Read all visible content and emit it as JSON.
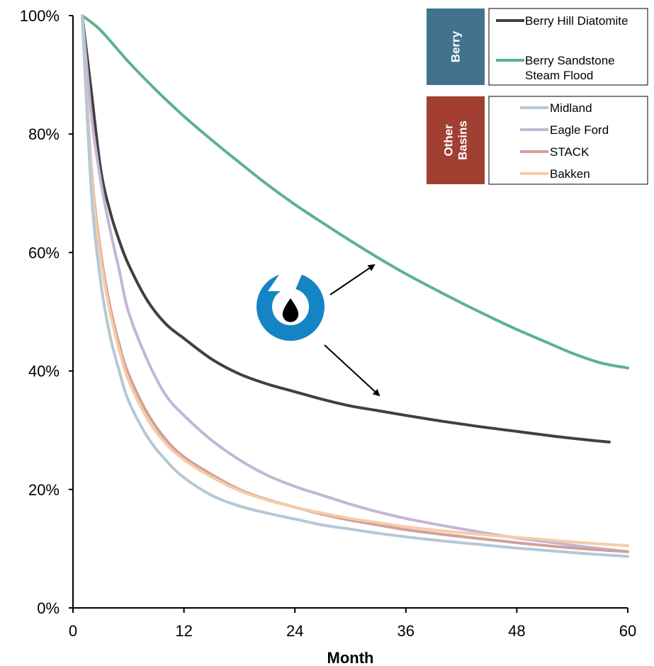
{
  "chart_data": {
    "type": "line",
    "xlabel": "Month",
    "ylabel": "",
    "xlim": [
      0,
      60
    ],
    "ylim": [
      0,
      1
    ],
    "x_ticks": [
      0,
      12,
      24,
      36,
      48,
      60
    ],
    "x_tick_labels": [
      "0",
      "12",
      "24",
      "36",
      "48",
      "60"
    ],
    "y_ticks": [
      0,
      0.2,
      0.4,
      0.6,
      0.8,
      1.0
    ],
    "y_tick_labels": [
      "0%",
      "20%",
      "40%",
      "60%",
      "80%",
      "100%"
    ],
    "grid": false,
    "legend_position": "top-right",
    "legend_groups": [
      {
        "label": "Berry",
        "color": "#41738f",
        "series": [
          "Berry Hill Diatomite",
          "Berry Sandstone Steam Flood"
        ]
      },
      {
        "label": "Other Basins",
        "color": "#a13f33",
        "series": [
          "Midland",
          "Eagle Ford",
          "STACK",
          "Bakken"
        ]
      }
    ],
    "series": [
      {
        "name": "Berry Sandstone Steam Flood",
        "color": "#5bb28e",
        "x": [
          1,
          3,
          6,
          9,
          12,
          15,
          18,
          21,
          24,
          27,
          30,
          33,
          36,
          39,
          42,
          45,
          48,
          51,
          54,
          57,
          60
        ],
        "y": [
          1.0,
          0.975,
          0.922,
          0.874,
          0.83,
          0.79,
          0.752,
          0.715,
          0.681,
          0.65,
          0.62,
          0.591,
          0.564,
          0.539,
          0.515,
          0.492,
          0.47,
          0.45,
          0.43,
          0.414,
          0.405
        ]
      },
      {
        "name": "Berry Hill Diatomite",
        "color": "#404040",
        "x": [
          1,
          2,
          3,
          4,
          5,
          6,
          8,
          10,
          12,
          15,
          18,
          21,
          24,
          27,
          30,
          33,
          36,
          40,
          44,
          48,
          52,
          56,
          58
        ],
        "y": [
          1.0,
          0.87,
          0.74,
          0.67,
          0.62,
          0.58,
          0.52,
          0.48,
          0.455,
          0.42,
          0.395,
          0.378,
          0.365,
          0.352,
          0.341,
          0.333,
          0.325,
          0.315,
          0.306,
          0.298,
          0.29,
          0.283,
          0.28
        ]
      },
      {
        "name": "Eagle Ford",
        "color": "#c4b5d6",
        "x": [
          1,
          2,
          3,
          4,
          5,
          6,
          8,
          10,
          12,
          15,
          18,
          21,
          24,
          27,
          30,
          33,
          36,
          40,
          44,
          48,
          52,
          56,
          60
        ],
        "y": [
          1.0,
          0.83,
          0.72,
          0.64,
          0.57,
          0.5,
          0.42,
          0.36,
          0.325,
          0.283,
          0.25,
          0.224,
          0.205,
          0.19,
          0.175,
          0.162,
          0.151,
          0.139,
          0.128,
          0.118,
          0.11,
          0.102,
          0.095
        ]
      },
      {
        "name": "STACK",
        "color": "#d1a09a",
        "x": [
          1,
          2,
          3,
          4,
          5,
          6,
          8,
          10,
          12,
          15,
          18,
          21,
          24,
          27,
          30,
          33,
          36,
          40,
          44,
          48,
          52,
          56,
          60
        ],
        "y": [
          1.0,
          0.74,
          0.6,
          0.51,
          0.445,
          0.395,
          0.33,
          0.285,
          0.255,
          0.225,
          0.2,
          0.183,
          0.17,
          0.158,
          0.148,
          0.14,
          0.132,
          0.124,
          0.117,
          0.11,
          0.104,
          0.099,
          0.095
        ]
      },
      {
        "name": "Bakken",
        "color": "#f5cca8",
        "x": [
          1,
          2,
          3,
          4,
          5,
          6,
          8,
          10,
          12,
          15,
          18,
          21,
          24,
          27,
          30,
          33,
          36,
          40,
          44,
          48,
          52,
          56,
          60
        ],
        "y": [
          1.0,
          0.73,
          0.59,
          0.5,
          0.435,
          0.385,
          0.32,
          0.278,
          0.25,
          0.221,
          0.198,
          0.182,
          0.17,
          0.16,
          0.151,
          0.144,
          0.137,
          0.13,
          0.124,
          0.119,
          0.114,
          0.109,
          0.105
        ]
      },
      {
        "name": "Midland",
        "color": "#b4c8d6",
        "x": [
          1,
          2,
          3,
          4,
          5,
          6,
          8,
          10,
          12,
          15,
          18,
          21,
          24,
          27,
          30,
          33,
          36,
          40,
          44,
          48,
          52,
          56,
          60
        ],
        "y": [
          1.0,
          0.7,
          0.55,
          0.46,
          0.4,
          0.35,
          0.29,
          0.25,
          0.22,
          0.19,
          0.172,
          0.16,
          0.15,
          0.14,
          0.133,
          0.126,
          0.12,
          0.113,
          0.107,
          0.101,
          0.096,
          0.091,
          0.087
        ]
      }
    ]
  },
  "logo": {
    "name": "berry-logo",
    "color": "#1584c5",
    "dot_color": "#000000"
  }
}
